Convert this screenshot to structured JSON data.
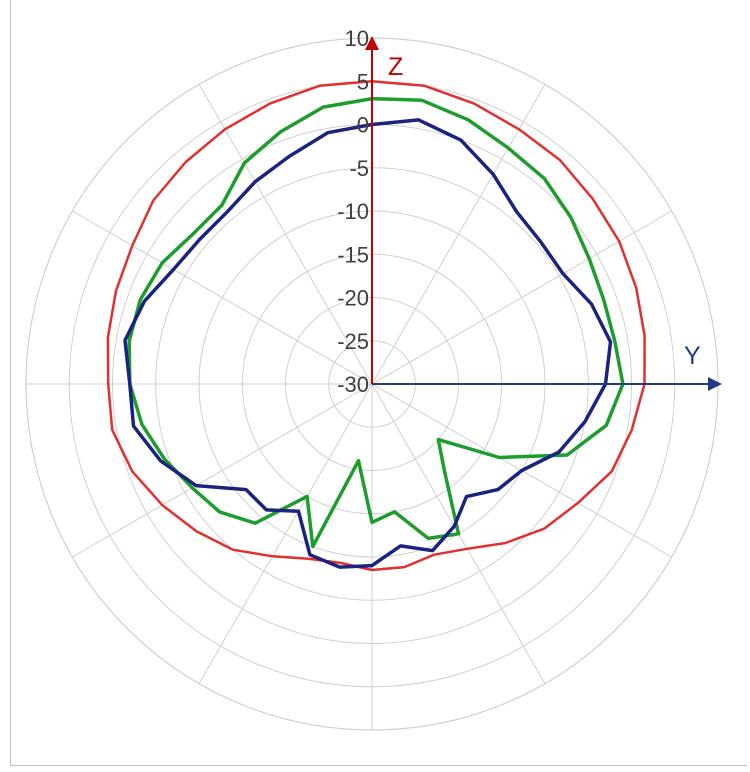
{
  "chart_data": {
    "type": "polar-line",
    "radial_ticks": [
      "10",
      "5",
      "0",
      "-5",
      "-10",
      "-15",
      "-20",
      "-25",
      "-30"
    ],
    "radial_range": [
      -30,
      10
    ],
    "angular_gridline_step_deg": 30,
    "grid": true,
    "axes": {
      "z_label": "Z",
      "z_color": "#c00000",
      "y_label": "Y",
      "y_color": "#1f3c88"
    },
    "angle_convention": "degrees from +Z (up), increasing clockwise toward +Y (right)",
    "series": [
      {
        "color": "#e03030",
        "points": [
          [
            0,
            5
          ],
          [
            10,
            5
          ],
          [
            20,
            4.5
          ],
          [
            30,
            4
          ],
          [
            40,
            3.8
          ],
          [
            50,
            3.3
          ],
          [
            60,
            3
          ],
          [
            70,
            2.5
          ],
          [
            80,
            2
          ],
          [
            90,
            1.5
          ],
          [
            100,
            0.5
          ],
          [
            110,
            -0.5
          ],
          [
            120,
            -2.5
          ],
          [
            130,
            -4
          ],
          [
            140,
            -6
          ],
          [
            150,
            -8
          ],
          [
            160,
            -9
          ],
          [
            170,
            -8.5
          ],
          [
            180,
            -8.5
          ],
          [
            190,
            -9
          ],
          [
            200,
            -8.5
          ],
          [
            210,
            -7
          ],
          [
            220,
            -5
          ],
          [
            230,
            -3.5
          ],
          [
            240,
            -2
          ],
          [
            250,
            -0.5
          ],
          [
            260,
            0.5
          ],
          [
            270,
            0.5
          ],
          [
            280,
            1
          ],
          [
            290,
            1.5
          ],
          [
            300,
            2
          ],
          [
            310,
            3
          ],
          [
            320,
            3.5
          ],
          [
            330,
            4
          ],
          [
            340,
            4.5
          ],
          [
            350,
            5
          ],
          [
            360,
            5
          ]
        ]
      },
      {
        "color": "#1f9c2e",
        "points": [
          [
            0,
            3
          ],
          [
            10,
            3.3
          ],
          [
            20,
            2.5
          ],
          [
            30,
            1.5
          ],
          [
            40,
            1
          ],
          [
            50,
            0
          ],
          [
            60,
            -1
          ],
          [
            70,
            -1.5
          ],
          [
            80,
            -1.5
          ],
          [
            90,
            -1
          ],
          [
            100,
            -2.5
          ],
          [
            110,
            -6
          ],
          [
            120,
            -13
          ],
          [
            130,
            -20
          ],
          [
            140,
            -17
          ],
          [
            150,
            -10
          ],
          [
            160,
            -11
          ],
          [
            170,
            -15
          ],
          [
            180,
            -14
          ],
          [
            190,
            -21
          ],
          [
            200,
            -10
          ],
          [
            210,
            -15
          ],
          [
            220,
            -9
          ],
          [
            230,
            -7
          ],
          [
            240,
            -6
          ],
          [
            250,
            -4.5
          ],
          [
            260,
            -3
          ],
          [
            270,
            -2
          ],
          [
            280,
            -1.5
          ],
          [
            290,
            -1.5
          ],
          [
            300,
            -2
          ],
          [
            310,
            -3
          ],
          [
            320,
            -3
          ],
          [
            330,
            -0.5
          ],
          [
            340,
            1
          ],
          [
            350,
            2.5
          ],
          [
            360,
            3
          ]
        ]
      },
      {
        "color": "#1a237e",
        "points": [
          [
            0,
            0
          ],
          [
            10,
            1
          ],
          [
            20,
            0
          ],
          [
            30,
            -2
          ],
          [
            40,
            -4
          ],
          [
            50,
            -4.5
          ],
          [
            60,
            -4.5
          ],
          [
            70,
            -3
          ],
          [
            80,
            -2
          ],
          [
            90,
            -3
          ],
          [
            100,
            -5
          ],
          [
            110,
            -7
          ],
          [
            120,
            -10
          ],
          [
            130,
            -11
          ],
          [
            140,
            -13
          ],
          [
            150,
            -11
          ],
          [
            160,
            -9.5
          ],
          [
            170,
            -11
          ],
          [
            180,
            -9
          ],
          [
            190,
            -8.5
          ],
          [
            200,
            -9
          ],
          [
            210,
            -13
          ],
          [
            220,
            -11
          ],
          [
            230,
            -11
          ],
          [
            240,
            -6.5
          ],
          [
            250,
            -4
          ],
          [
            260,
            -2
          ],
          [
            270,
            -2
          ],
          [
            280,
            -1
          ],
          [
            290,
            -2
          ],
          [
            300,
            -3.5
          ],
          [
            310,
            -4
          ],
          [
            320,
            -4
          ],
          [
            330,
            -3
          ],
          [
            340,
            -2
          ],
          [
            350,
            -0.5
          ],
          [
            360,
            0
          ]
        ]
      }
    ]
  }
}
